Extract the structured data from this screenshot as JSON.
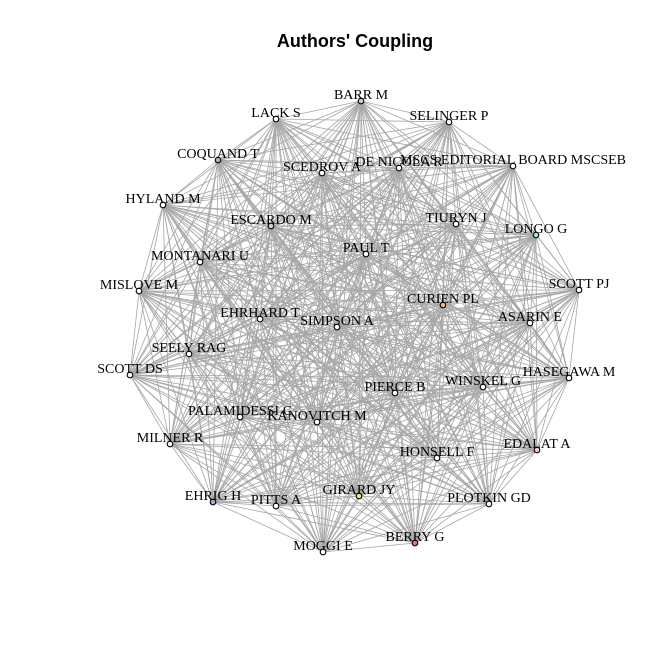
{
  "title": "Authors' Coupling",
  "colors": {
    "edge": "#a6a6a6",
    "node_default": "#ffffff",
    "node_border": "#000000"
  },
  "network": {
    "nodes": [
      {
        "id": "BARR M",
        "color": "#c5cae9"
      },
      {
        "id": "LACK S",
        "color": "#ffffff"
      },
      {
        "id": "SELINGER P",
        "color": "#ffffff"
      },
      {
        "id": "COQUAND T",
        "color": "#9fb6d3"
      },
      {
        "id": "SCEDROV A",
        "color": "#ffffff"
      },
      {
        "id": "DE NICOLA R",
        "color": "#ffffff"
      },
      {
        "id": "MSCS EDITORIAL BOARD MSCSEB",
        "color": "#ffffff"
      },
      {
        "id": "HYLAND M",
        "color": "#ffffff"
      },
      {
        "id": "ESCARDO M",
        "color": "#b7dfb0"
      },
      {
        "id": "TIURYN J",
        "color": "#ffffff"
      },
      {
        "id": "LONGO G",
        "color": "#a8e0d8"
      },
      {
        "id": "MONTANARI U",
        "color": "#ffffff"
      },
      {
        "id": "PAUL T",
        "color": "#ffffff"
      },
      {
        "id": "MISLOVE M",
        "color": "#ffffff"
      },
      {
        "id": "SCOTT PJ",
        "color": "#ffffff"
      },
      {
        "id": "CURIEN PL",
        "color": "#f4b183"
      },
      {
        "id": "EHRHARD T",
        "color": "#ffffff"
      },
      {
        "id": "SIMPSON A",
        "color": "#ffffff"
      },
      {
        "id": "ASARIN E",
        "color": "#ffffff"
      },
      {
        "id": "SEELY RAG",
        "color": "#ffffff"
      },
      {
        "id": "SCOTT DS",
        "color": "#ffffff"
      },
      {
        "id": "HASEGAWA M",
        "color": "#ffffff"
      },
      {
        "id": "PIERCE B",
        "color": "#ffffff"
      },
      {
        "id": "WINSKEL G",
        "color": "#ffffff"
      },
      {
        "id": "PALAMIDESSI C",
        "color": "#ffffff"
      },
      {
        "id": "KANOVITCH M",
        "color": "#ffffff"
      },
      {
        "id": "MILNER R",
        "color": "#ffffff"
      },
      {
        "id": "EDALAT A",
        "color": "#f8c8d8"
      },
      {
        "id": "HONSELL F",
        "color": "#ffffff"
      },
      {
        "id": "EHRIG H",
        "color": "#b9a0d8"
      },
      {
        "id": "PITTS A",
        "color": "#ffffff"
      },
      {
        "id": "GIRARD JY",
        "color": "#f2e08a"
      },
      {
        "id": "PLOTKIN GD",
        "color": "#ffffff"
      },
      {
        "id": "BERRY G",
        "color": "#f07070"
      },
      {
        "id": "MOGGI E",
        "color": "#ffffff"
      }
    ]
  }
}
